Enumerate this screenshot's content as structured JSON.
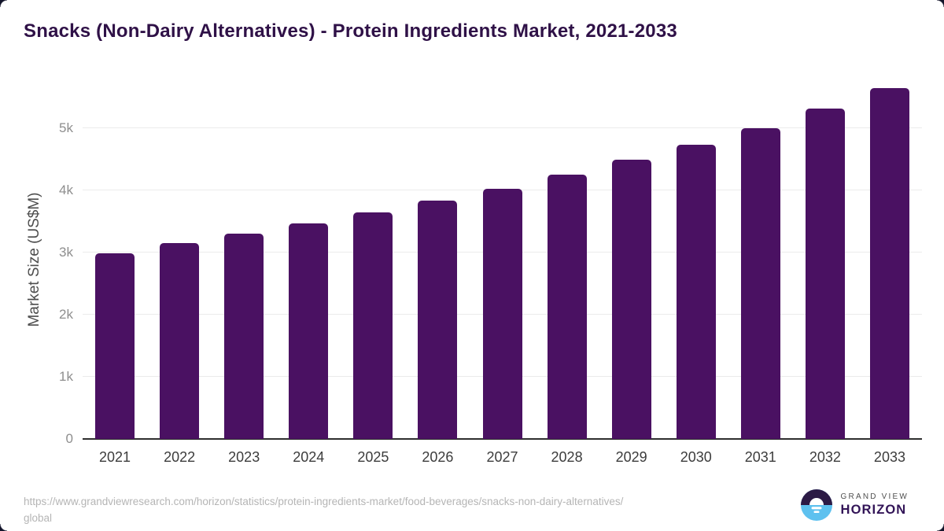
{
  "title": "Snacks (Non-Dairy Alternatives) - Protein Ingredients Market, 2021-2033",
  "chart_data": {
    "type": "bar",
    "title": "Snacks (Non-Dairy Alternatives) - Protein Ingredients Market, 2021-2033",
    "categories": [
      "2021",
      "2022",
      "2023",
      "2024",
      "2025",
      "2026",
      "2027",
      "2028",
      "2029",
      "2030",
      "2031",
      "2032",
      "2033"
    ],
    "values": [
      2990,
      3145,
      3300,
      3465,
      3635,
      3835,
      4015,
      4250,
      4490,
      4730,
      5000,
      5310,
      5640
    ],
    "xlabel": "",
    "ylabel": "Market Size (US$M)",
    "ylim": [
      0,
      5790
    ],
    "ytick_values": [
      0,
      1000,
      2000,
      3000,
      4000,
      5000
    ],
    "ytick_labels": [
      "0",
      "1k",
      "2k",
      "3k",
      "4k",
      "5k"
    ],
    "grid": "horizontal",
    "legend": "none",
    "bar_color": "#4a1162"
  },
  "footer": {
    "source_lines": [
      "https://www.grandviewresearch.com/horizon/statistics/protein-ingredients-market/food-beverages/snacks-non-dairy-alternatives/",
      "global"
    ],
    "logo": {
      "top": "GRAND VIEW",
      "bottom": "HORIZON",
      "icon": "horizon-sun-logo-icon",
      "circle_top_color": "#2c1a45",
      "circle_bottom_color": "#5ec1ef"
    }
  }
}
